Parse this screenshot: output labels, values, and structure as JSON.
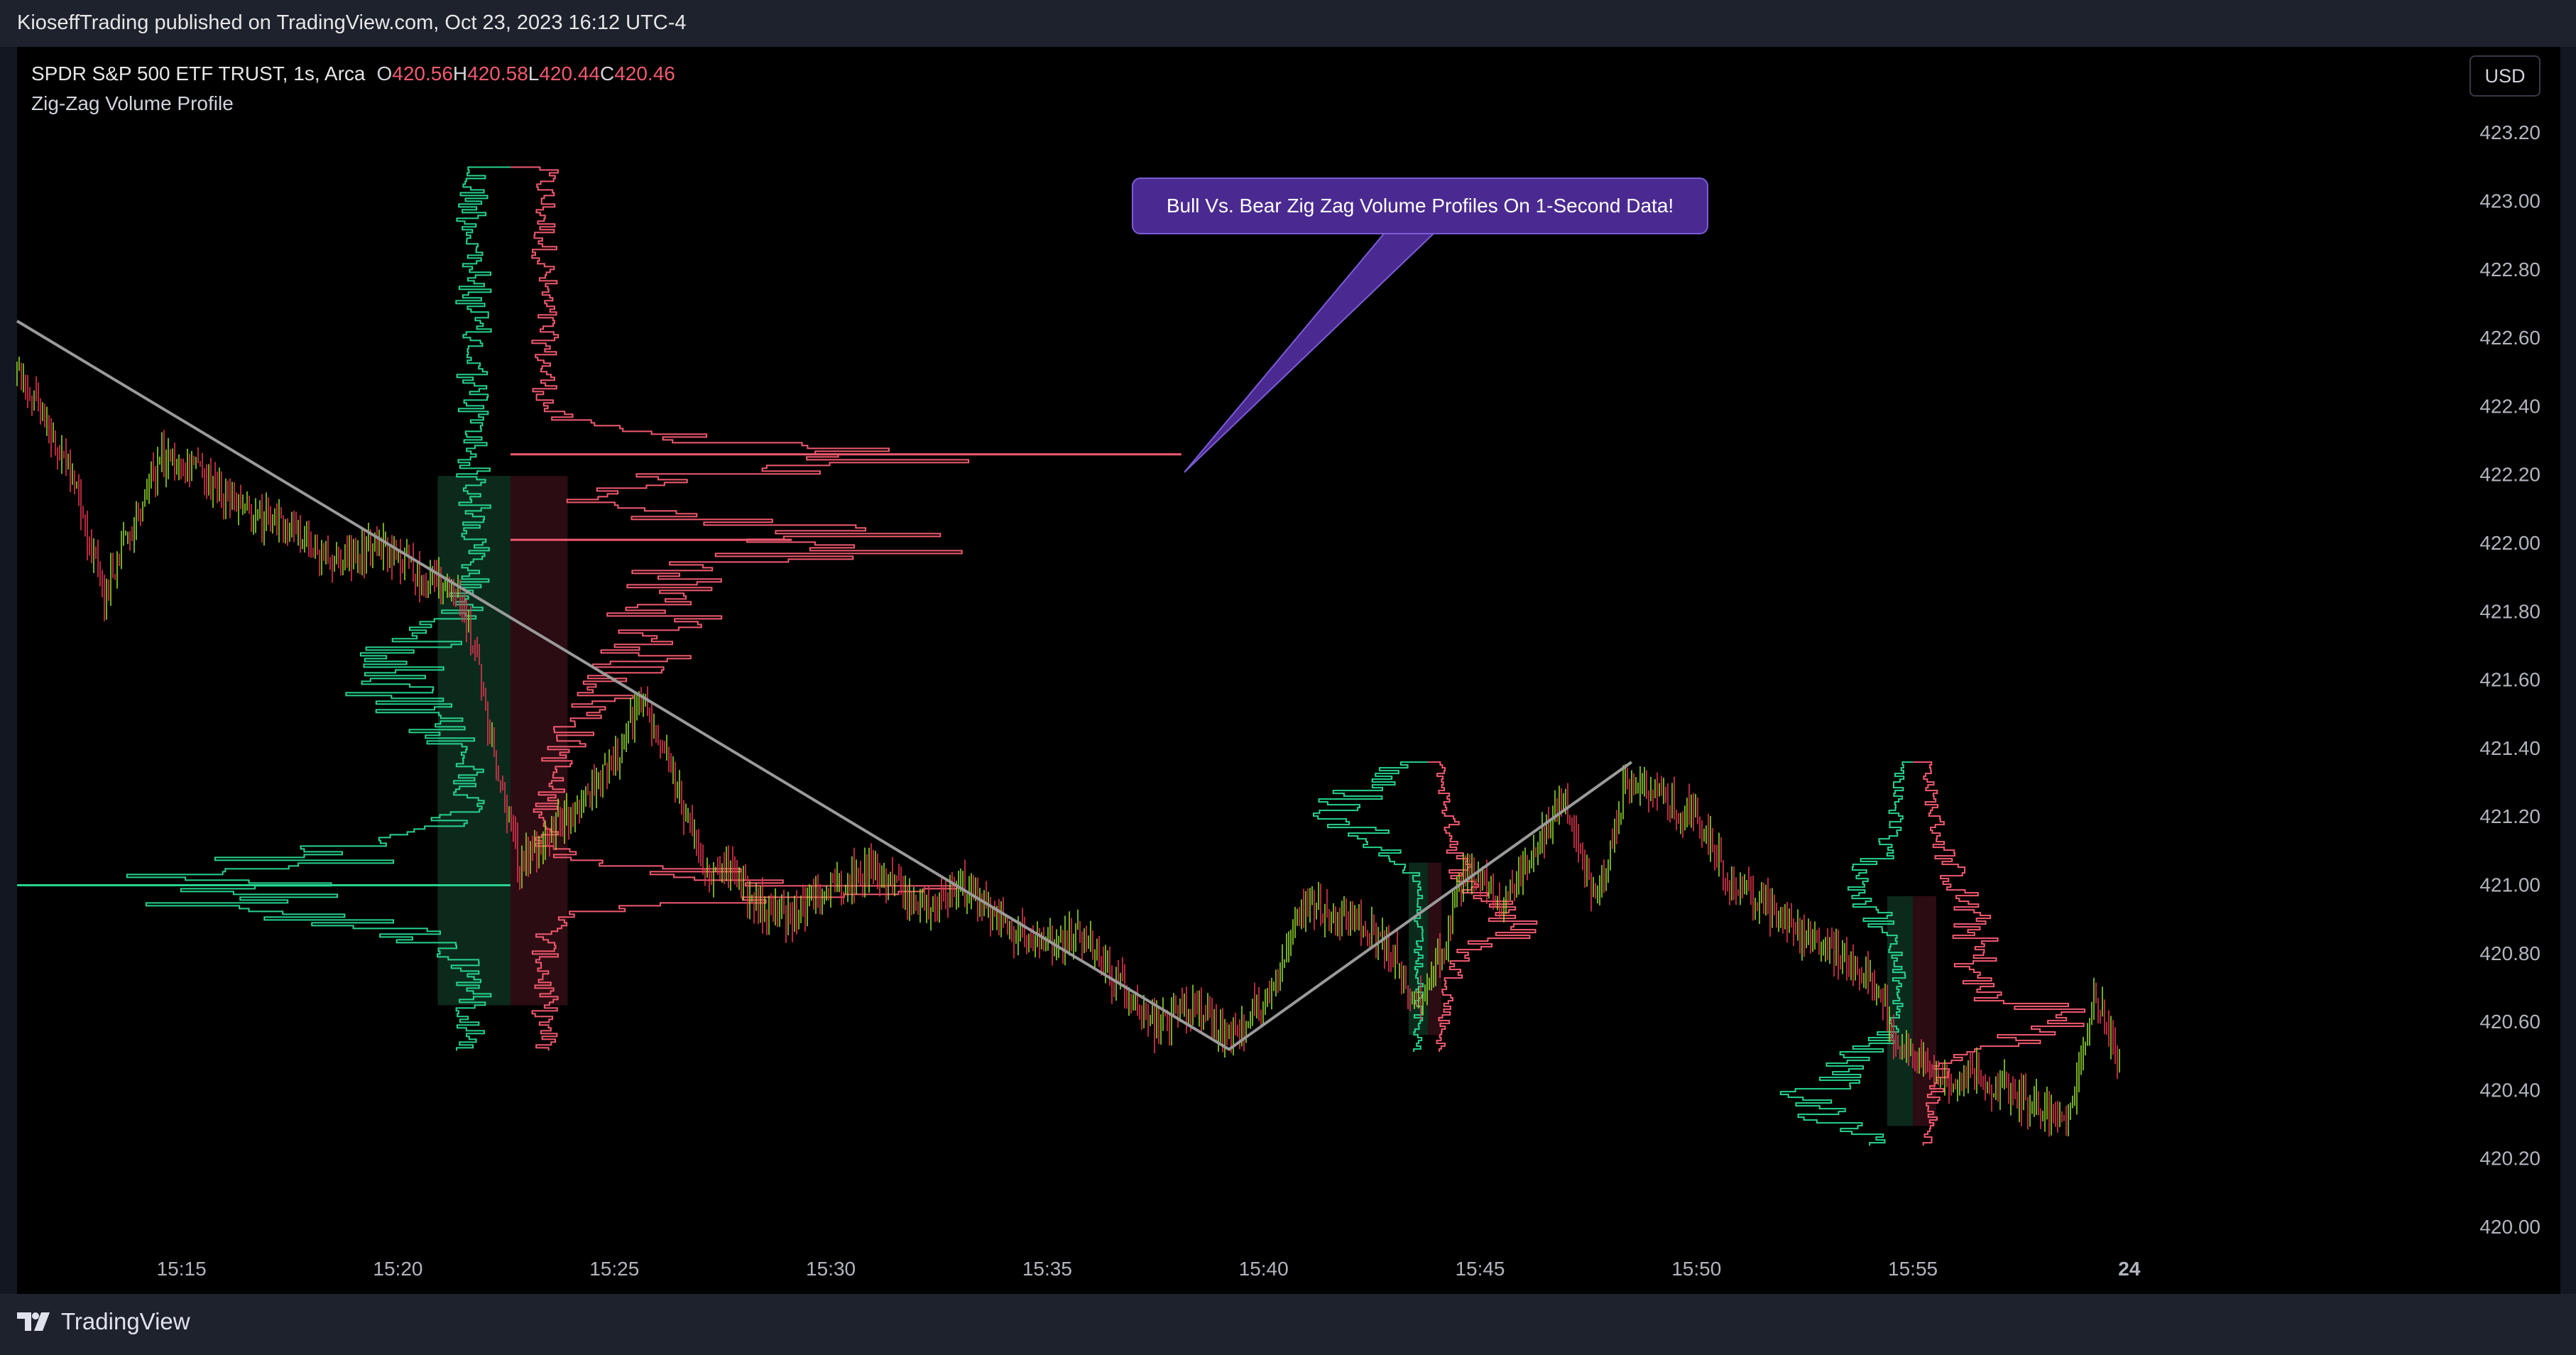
{
  "header": {
    "publisher_line": "KioseffTrading published on TradingView.com, Oct 23, 2023 16:12 UTC-4"
  },
  "legend": {
    "symbol": "SPDR S&P 500 ETF TRUST, 1s, Arca",
    "open_label": "O",
    "open": "420.56",
    "high_label": "H",
    "high": "420.58",
    "low_label": "L",
    "low": "420.44",
    "close_label": "C",
    "close": "420.46",
    "indicator": "Zig-Zag Volume Profile"
  },
  "currency_button": "USD",
  "annotation": {
    "text": "Bull Vs. Bear Zig Zag Volume Profiles On 1-Second Data!"
  },
  "footer": {
    "brand": "TradingView"
  },
  "colors": {
    "bull": "#26d38e",
    "bear": "#f25a6f",
    "zigzag": "#9a9a9a",
    "callout": "#4a2a90",
    "panel": "#131722",
    "plot": "#000000"
  },
  "chart_data": {
    "type": "candlestick",
    "title": "SPDR S&P 500 ETF TRUST, 1s, Arca",
    "x_tick_labels": [
      "15:15",
      "15:20",
      "15:25",
      "15:30",
      "15:35",
      "15:40",
      "15:45",
      "15:50",
      "15:55",
      "24"
    ],
    "x_tick_minutes": [
      15,
      20,
      25,
      30,
      35,
      40,
      45,
      50,
      55,
      60
    ],
    "y_tick_labels": [
      "423.20",
      "423.00",
      "422.80",
      "422.60",
      "422.40",
      "422.20",
      "422.00",
      "421.80",
      "421.60",
      "421.40",
      "421.20",
      "421.00",
      "420.80",
      "420.60",
      "420.40",
      "420.20",
      "420.00"
    ],
    "ylim": [
      419.95,
      423.25
    ],
    "xlim_minutes": [
      11.2,
      67.4
    ],
    "price_path": {
      "x_minutes": [
        11.2,
        12.5,
        13.2,
        14.5,
        15.5,
        16.5,
        17.5,
        18.5,
        19.5,
        20.6,
        21.5,
        22.2,
        22.8,
        23.5,
        24.2,
        25.0,
        25.6,
        26.2,
        27.0,
        27.6,
        28.2,
        29.0,
        30.0,
        31.0,
        32.0,
        33.0,
        34.0,
        35.0,
        35.8,
        36.6,
        37.5,
        38.3,
        39.2,
        40.2,
        41.0,
        41.6,
        42.3,
        43.0,
        43.5,
        44.1,
        44.7,
        45.6,
        46.3,
        46.9,
        47.7,
        48.4,
        49.2,
        50.0,
        50.8,
        51.6,
        52.4,
        53.2,
        54.0,
        54.6,
        55.2,
        55.8,
        56.5,
        57.2,
        58.0,
        58.6,
        59.2,
        59.8
      ],
      "price": [
        422.5,
        422.2,
        421.85,
        422.25,
        422.2,
        422.08,
        422.05,
        421.95,
        422.0,
        421.9,
        421.85,
        421.4,
        421.05,
        421.15,
        421.25,
        421.35,
        421.55,
        421.4,
        421.05,
        421.05,
        420.95,
        420.9,
        421.0,
        421.05,
        420.92,
        421.0,
        420.88,
        420.82,
        420.85,
        420.72,
        420.58,
        420.65,
        420.55,
        420.7,
        420.95,
        420.92,
        420.88,
        420.8,
        420.65,
        420.8,
        421.05,
        420.95,
        421.1,
        421.25,
        420.95,
        421.32,
        421.25,
        421.2,
        421.0,
        420.95,
        420.85,
        420.8,
        420.75,
        420.55,
        420.48,
        420.43,
        420.45,
        420.4,
        420.35,
        420.3,
        420.7,
        420.46
      ]
    },
    "zigzag": {
      "x_minutes": [
        11.2,
        39.2,
        48.5
      ],
      "price": [
        422.65,
        420.52,
        421.36
      ]
    },
    "volume_profiles": [
      {
        "anchor_minute": 22.6,
        "price_low": 420.52,
        "price_high": 423.1,
        "max_bull_width_minutes": 10.5,
        "max_bear_width_minutes": 11.0,
        "bull_peak_price": 421.0,
        "bear_peak_prices": [
          422.26,
          422.01,
          421.0
        ]
      },
      {
        "anchor_minute": 43.8,
        "price_low": 420.52,
        "price_high": 421.36,
        "max_bull_width_minutes": 2.8,
        "max_bear_width_minutes": 2.6,
        "bull_peak_price": 421.22,
        "bear_peak_prices": [
          420.9
        ]
      },
      {
        "anchor_minute": 55.0,
        "price_low": 420.24,
        "price_high": 421.36,
        "max_bull_width_minutes": 3.7,
        "max_bear_width_minutes": 4.5,
        "bull_peak_price": 420.4,
        "bear_peak_prices": [
          420.6
        ]
      }
    ],
    "grid": false,
    "legend_position": "top-left"
  }
}
